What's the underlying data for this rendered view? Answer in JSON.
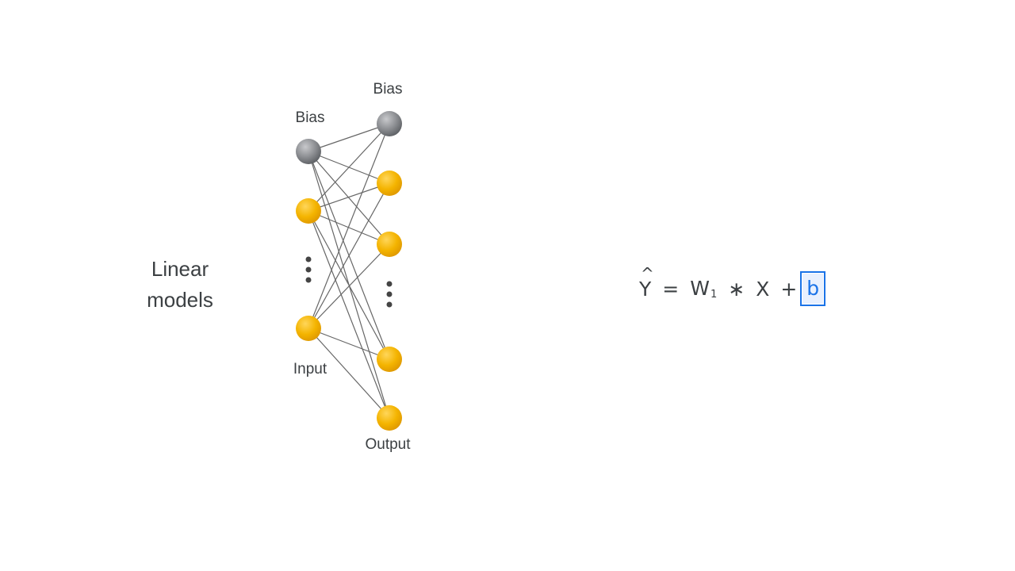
{
  "left_title": {
    "line1": "Linear",
    "line2": "models"
  },
  "network": {
    "input_bias_label": "Bias",
    "output_bias_label": "Bias",
    "input_label": "Input",
    "output_label": "Output",
    "colors": {
      "bias_node": "#8a8c90",
      "neuron_node": "#f4b400",
      "edge": "#666666",
      "dots": "#444444"
    }
  },
  "equation": {
    "y_hat": "Y",
    "hat": "^",
    "equals": "=",
    "w": "W",
    "w_sub": "1",
    "times": "∗",
    "x": "X",
    "plus": "+",
    "b": "b",
    "highlight_color": "#1a73e8"
  }
}
